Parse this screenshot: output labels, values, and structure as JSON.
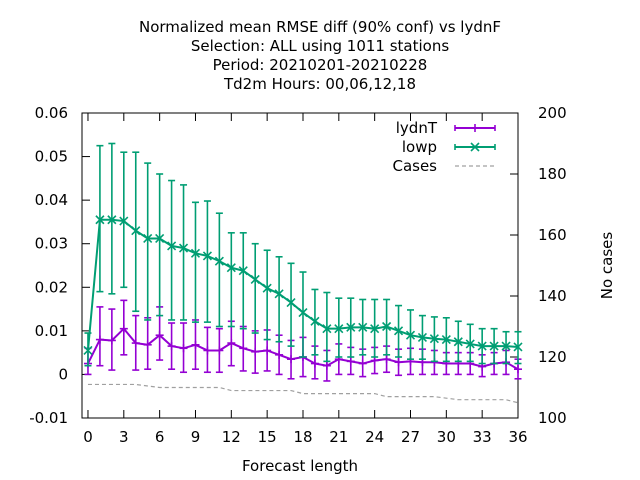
{
  "chart_data": {
    "type": "line",
    "title": [
      "Normalized mean RMSE diff (90% conf) vs lydnF",
      "Selection: ALL using  1011 stations",
      "Period: 20210201-20210228",
      "Td2m   Hours:  00,06,12,18"
    ],
    "xlabel": "Forecast length",
    "ylabel": "",
    "y2label": "No cases",
    "xlim": [
      -0.5,
      36
    ],
    "ylim": [
      -0.01,
      0.06
    ],
    "y2lim": [
      100,
      200
    ],
    "x_ticks": [
      0,
      3,
      6,
      9,
      12,
      15,
      18,
      21,
      24,
      27,
      30,
      33,
      36
    ],
    "y_ticks": [
      -0.01,
      0,
      0.01,
      0.02,
      0.03,
      0.04,
      0.05,
      0.06
    ],
    "y_tick_labels": [
      "-0.01",
      "0",
      "0.01",
      "0.02",
      "0.03",
      "0.04",
      "0.05",
      "0.06"
    ],
    "y2_ticks": [
      100,
      120,
      140,
      160,
      180,
      200
    ],
    "legend_position": "top-right",
    "x": [
      0,
      1,
      2,
      3,
      4,
      5,
      6,
      7,
      8,
      9,
      10,
      11,
      12,
      13,
      14,
      15,
      16,
      17,
      18,
      19,
      20,
      21,
      22,
      23,
      24,
      25,
      26,
      27,
      28,
      29,
      30,
      31,
      32,
      33,
      34,
      35,
      36
    ],
    "series": [
      {
        "name": "lydnT",
        "color": "#9400d3",
        "marker": "plus",
        "axis": "y1",
        "values": [
          0.0025,
          0.008,
          0.0078,
          0.0105,
          0.0072,
          0.0068,
          0.009,
          0.0065,
          0.006,
          0.0068,
          0.0055,
          0.0055,
          0.0072,
          0.006,
          0.0052,
          0.0055,
          0.0045,
          0.0035,
          0.004,
          0.0025,
          0.002,
          0.0035,
          0.003,
          0.0025,
          0.0032,
          0.0035,
          0.0028,
          0.003,
          0.0028,
          0.0028,
          0.0025,
          0.0025,
          0.0025,
          0.0018,
          0.0025,
          0.0028,
          0.0012
        ],
        "err_low": [
          0.0,
          0.002,
          0.001,
          0.0045,
          0.001,
          0.0012,
          0.0033,
          0.0012,
          0.0005,
          0.0012,
          0.0005,
          0.0005,
          0.002,
          0.0008,
          0.0003,
          0.0008,
          0.0,
          -0.001,
          -0.0005,
          -0.001,
          -0.0015,
          0.0,
          0.0,
          -0.0005,
          0.0002,
          0.0005,
          -0.0002,
          0.0,
          0.0,
          0.0,
          0.0,
          0.0,
          0.0,
          -0.0005,
          0.0,
          0.0,
          -0.001
        ],
        "err_high": [
          0.006,
          0.0155,
          0.015,
          0.017,
          0.0135,
          0.013,
          0.0155,
          0.0118,
          0.0118,
          0.0125,
          0.0108,
          0.0105,
          0.0122,
          0.011,
          0.01,
          0.0102,
          0.009,
          0.0078,
          0.0085,
          0.0065,
          0.0055,
          0.007,
          0.0062,
          0.0058,
          0.0062,
          0.0065,
          0.0058,
          0.006,
          0.0058,
          0.0055,
          0.005,
          0.005,
          0.005,
          0.0045,
          0.005,
          0.0055,
          0.0035
        ]
      },
      {
        "name": "lowp",
        "color": "#009e73",
        "marker": "cross",
        "axis": "y1",
        "values": [
          0.0055,
          0.0355,
          0.0355,
          0.0352,
          0.033,
          0.0312,
          0.0312,
          0.0295,
          0.029,
          0.0278,
          0.0272,
          0.026,
          0.0245,
          0.0238,
          0.0218,
          0.0198,
          0.0185,
          0.0165,
          0.0142,
          0.0122,
          0.0105,
          0.0105,
          0.0108,
          0.0108,
          0.0105,
          0.011,
          0.01,
          0.009,
          0.0085,
          0.0082,
          0.008,
          0.0075,
          0.007,
          0.0065,
          0.0065,
          0.0065,
          0.0063
        ],
        "err_low": [
          0.002,
          0.019,
          0.0185,
          0.02,
          0.0145,
          0.0125,
          0.0135,
          0.0125,
          0.0125,
          0.012,
          0.012,
          0.011,
          0.011,
          0.0105,
          0.0095,
          0.008,
          0.0075,
          0.0065,
          0.004,
          0.0045,
          0.003,
          0.004,
          0.004,
          0.0045,
          0.004,
          0.0045,
          0.004,
          0.0035,
          0.0035,
          0.003,
          0.003,
          0.003,
          0.003,
          0.0025,
          0.0025,
          0.0025,
          0.0025
        ],
        "err_high": [
          0.0095,
          0.0525,
          0.053,
          0.051,
          0.051,
          0.0485,
          0.046,
          0.0445,
          0.0435,
          0.0395,
          0.0398,
          0.037,
          0.0325,
          0.0325,
          0.03,
          0.0285,
          0.027,
          0.0255,
          0.0235,
          0.0195,
          0.0188,
          0.0175,
          0.0175,
          0.0172,
          0.0172,
          0.0172,
          0.0158,
          0.0148,
          0.0135,
          0.0132,
          0.013,
          0.0122,
          0.0115,
          0.0105,
          0.0105,
          0.0098,
          0.0098
        ]
      },
      {
        "name": "Cases",
        "color": "#a0a0a0",
        "style": "dashed",
        "axis": "y2",
        "values": [
          111,
          111,
          111,
          111,
          111,
          110.5,
          110,
          110,
          110,
          110,
          110,
          110,
          109,
          109,
          109,
          109,
          109,
          109,
          108,
          108,
          108,
          108,
          108,
          108,
          108,
          107,
          107,
          107,
          107,
          107,
          106.5,
          106,
          106,
          106,
          106,
          106,
          105
        ]
      }
    ]
  }
}
